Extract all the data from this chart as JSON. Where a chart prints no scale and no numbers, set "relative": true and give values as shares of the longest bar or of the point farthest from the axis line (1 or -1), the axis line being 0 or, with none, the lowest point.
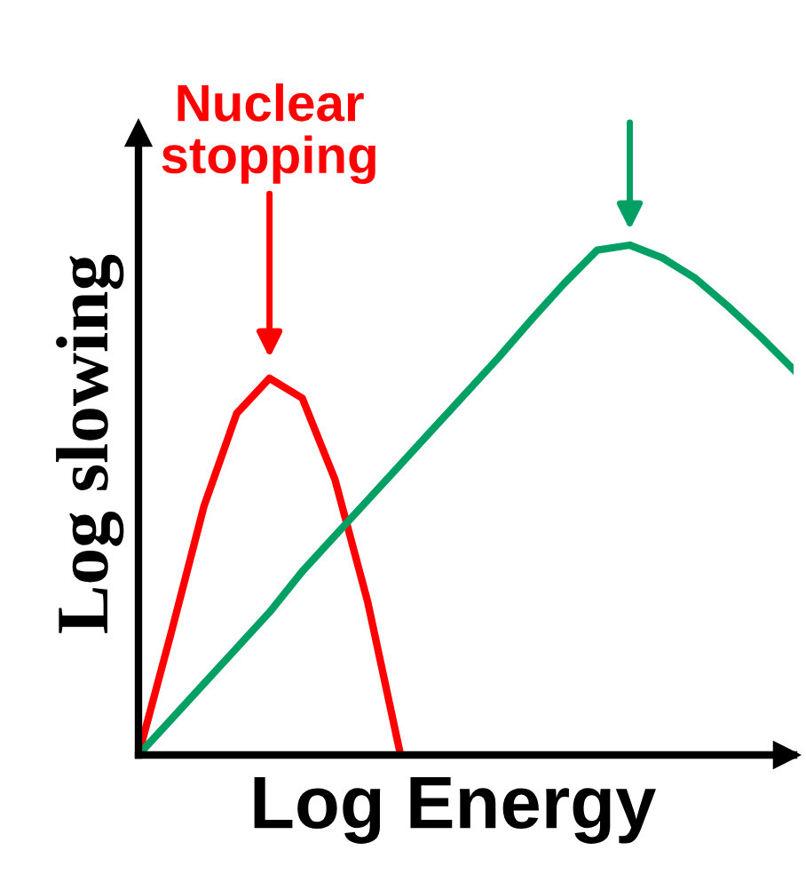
{
  "chart_data": {
    "type": "line",
    "relative": true,
    "xlabel": "Log Energy",
    "ylabel": "Log slowing",
    "legend": false,
    "marker": "none",
    "line_style": "solid",
    "categories": [
      null,
      null,
      null,
      null,
      null,
      null,
      null,
      null,
      null,
      null,
      null,
      null,
      null,
      null,
      null,
      null,
      null,
      null,
      null,
      null,
      null
    ],
    "series": [
      {
        "color": "#ff0000",
        "values": [
          0,
          0.24,
          0.488,
          0.67,
          0.739,
          0.7,
          0.54,
          0.3,
          0,
          null,
          null,
          null,
          null,
          null,
          null,
          null,
          null,
          null,
          null,
          null,
          null
        ]
      },
      {
        "color": "#00a064",
        "values": [
          0,
          0.07,
          0.14,
          0.21,
          0.28,
          0.36,
          0.43,
          0.5,
          0.57,
          0.64,
          0.71,
          0.78,
          0.854,
          0.925,
          0.99,
          1,
          0.975,
          0.935,
          0.88,
          0.82,
          0.756
        ]
      }
    ],
    "annotations": [
      "Nuclear\nstopping"
    ]
  }
}
